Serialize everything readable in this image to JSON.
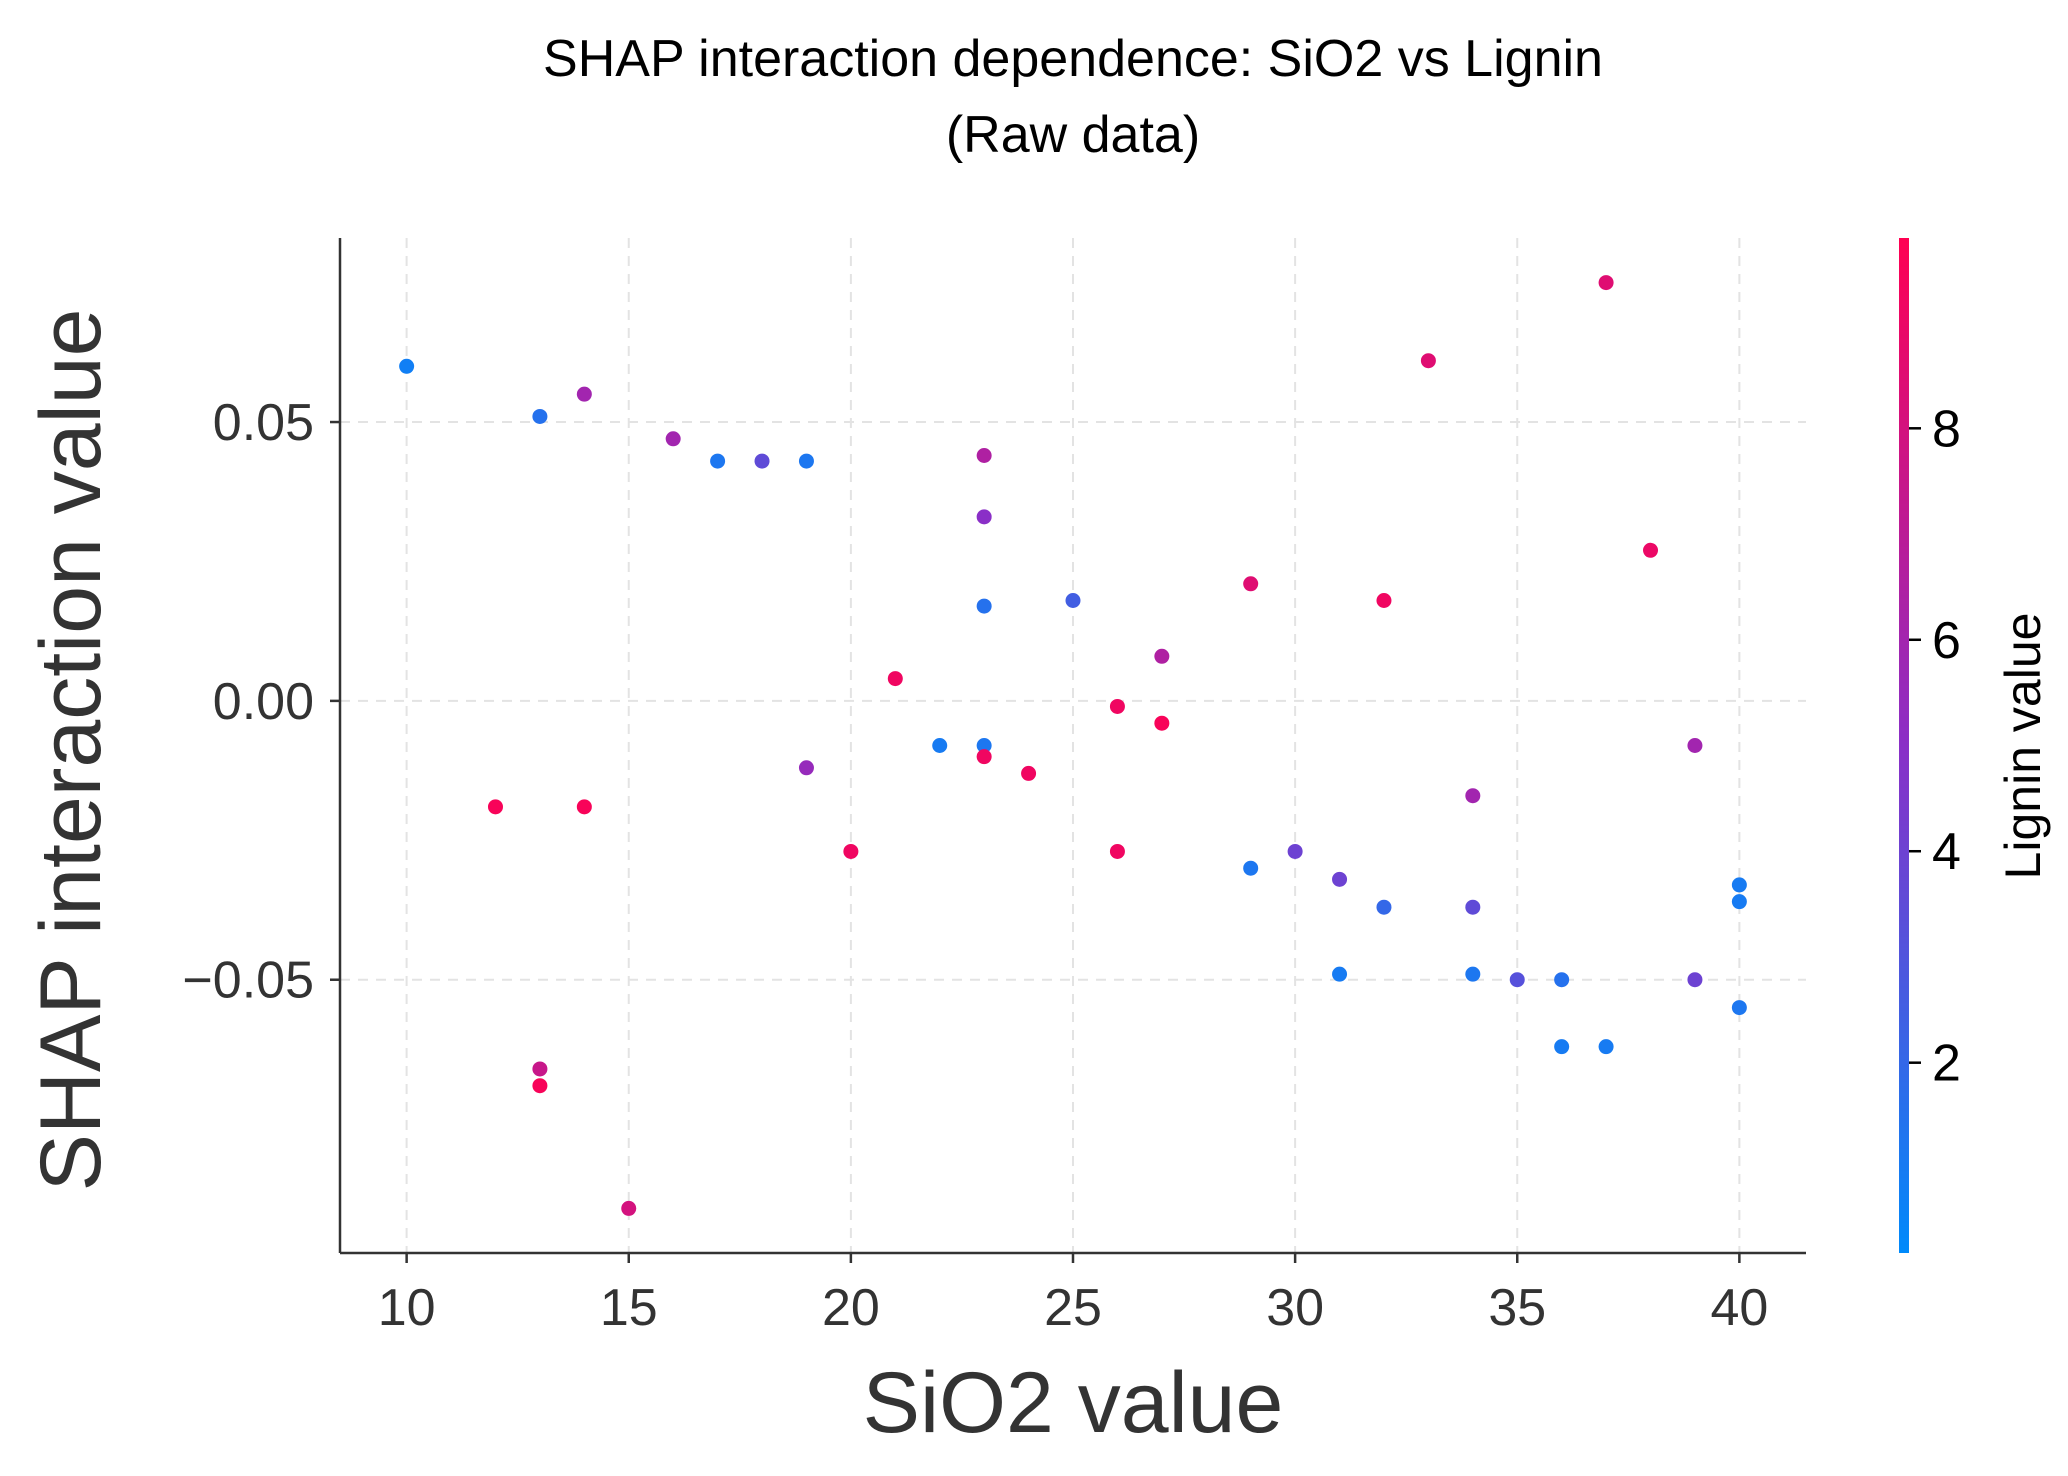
{
  "chart_data": {
    "type": "scatter",
    "title": "SHAP interaction dependence: SiO2 vs Lignin",
    "subtitle": "(Raw data)",
    "xlabel": "SiO2 value",
    "ylabel": "SHAP interaction value",
    "colorbar_label": "Lignin value",
    "xlim": [
      8.5,
      41.5
    ],
    "ylim": [
      -0.099,
      0.083
    ],
    "x_ticks": [
      10,
      15,
      20,
      25,
      30,
      35,
      40
    ],
    "x_tick_labels": [
      "10",
      "15",
      "20",
      "25",
      "30",
      "35",
      "40"
    ],
    "y_ticks": [
      0.05,
      0.0,
      -0.05
    ],
    "y_tick_labels": [
      "0.05",
      "0.00",
      "−0.05"
    ],
    "colorbar_range": [
      0.2,
      9.8
    ],
    "colorbar_ticks": [
      2,
      4,
      6,
      8
    ],
    "colorbar_tick_labels": [
      "2",
      "4",
      "6",
      "8"
    ],
    "grid": true,
    "colors": {
      "low": "#008afb",
      "mid": "#8a2fc7",
      "high": "#ff0052",
      "axis": "#333333",
      "grid": "#e3e3e3"
    },
    "points": [
      {
        "x": 10,
        "y": 0.06,
        "c": 0.8
      },
      {
        "x": 13,
        "y": 0.051,
        "c": 1.5
      },
      {
        "x": 14,
        "y": 0.055,
        "c": 6.0
      },
      {
        "x": 16,
        "y": 0.047,
        "c": 6.0
      },
      {
        "x": 17,
        "y": 0.043,
        "c": 1.2
      },
      {
        "x": 18,
        "y": 0.043,
        "c": 3.5
      },
      {
        "x": 19,
        "y": 0.043,
        "c": 1.2
      },
      {
        "x": 23,
        "y": 0.044,
        "c": 6.5
      },
      {
        "x": 23,
        "y": 0.033,
        "c": 5.0
      },
      {
        "x": 23,
        "y": 0.017,
        "c": 1.5
      },
      {
        "x": 25,
        "y": 0.018,
        "c": 2.5
      },
      {
        "x": 29,
        "y": 0.021,
        "c": 8.5
      },
      {
        "x": 32,
        "y": 0.018,
        "c": 9.2
      },
      {
        "x": 33,
        "y": 0.061,
        "c": 8.5
      },
      {
        "x": 37,
        "y": 0.075,
        "c": 8.5
      },
      {
        "x": 38,
        "y": 0.027,
        "c": 9.0
      },
      {
        "x": 27,
        "y": 0.008,
        "c": 6.5
      },
      {
        "x": 21,
        "y": 0.004,
        "c": 9.2
      },
      {
        "x": 26,
        "y": -0.001,
        "c": 9.2
      },
      {
        "x": 27,
        "y": -0.004,
        "c": 9.5
      },
      {
        "x": 22,
        "y": -0.008,
        "c": 1.0
      },
      {
        "x": 23,
        "y": -0.008,
        "c": 1.2
      },
      {
        "x": 23,
        "y": -0.01,
        "c": 9.2
      },
      {
        "x": 24,
        "y": -0.013,
        "c": 9.2
      },
      {
        "x": 19,
        "y": -0.012,
        "c": 5.5
      },
      {
        "x": 39,
        "y": -0.008,
        "c": 6.0
      },
      {
        "x": 12,
        "y": -0.019,
        "c": 9.5
      },
      {
        "x": 14,
        "y": -0.019,
        "c": 9.5
      },
      {
        "x": 34,
        "y": -0.017,
        "c": 6.0
      },
      {
        "x": 20,
        "y": -0.027,
        "c": 9.2
      },
      {
        "x": 26,
        "y": -0.027,
        "c": 9.2
      },
      {
        "x": 29,
        "y": -0.03,
        "c": 1.2
      },
      {
        "x": 30,
        "y": -0.027,
        "c": 4.0
      },
      {
        "x": 31,
        "y": -0.032,
        "c": 4.0
      },
      {
        "x": 32,
        "y": -0.037,
        "c": 2.0
      },
      {
        "x": 34,
        "y": -0.037,
        "c": 3.5
      },
      {
        "x": 40,
        "y": -0.033,
        "c": 1.0
      },
      {
        "x": 40,
        "y": -0.036,
        "c": 1.0
      },
      {
        "x": 31,
        "y": -0.049,
        "c": 1.0
      },
      {
        "x": 34,
        "y": -0.049,
        "c": 1.2
      },
      {
        "x": 35,
        "y": -0.05,
        "c": 3.2
      },
      {
        "x": 36,
        "y": -0.05,
        "c": 1.5
      },
      {
        "x": 39,
        "y": -0.05,
        "c": 4.0
      },
      {
        "x": 40,
        "y": -0.055,
        "c": 1.2
      },
      {
        "x": 36,
        "y": -0.062,
        "c": 1.0
      },
      {
        "x": 37,
        "y": -0.062,
        "c": 1.0
      },
      {
        "x": 13,
        "y": -0.066,
        "c": 7.5
      },
      {
        "x": 13,
        "y": -0.069,
        "c": 9.5
      },
      {
        "x": 15,
        "y": -0.091,
        "c": 8.0
      }
    ]
  }
}
